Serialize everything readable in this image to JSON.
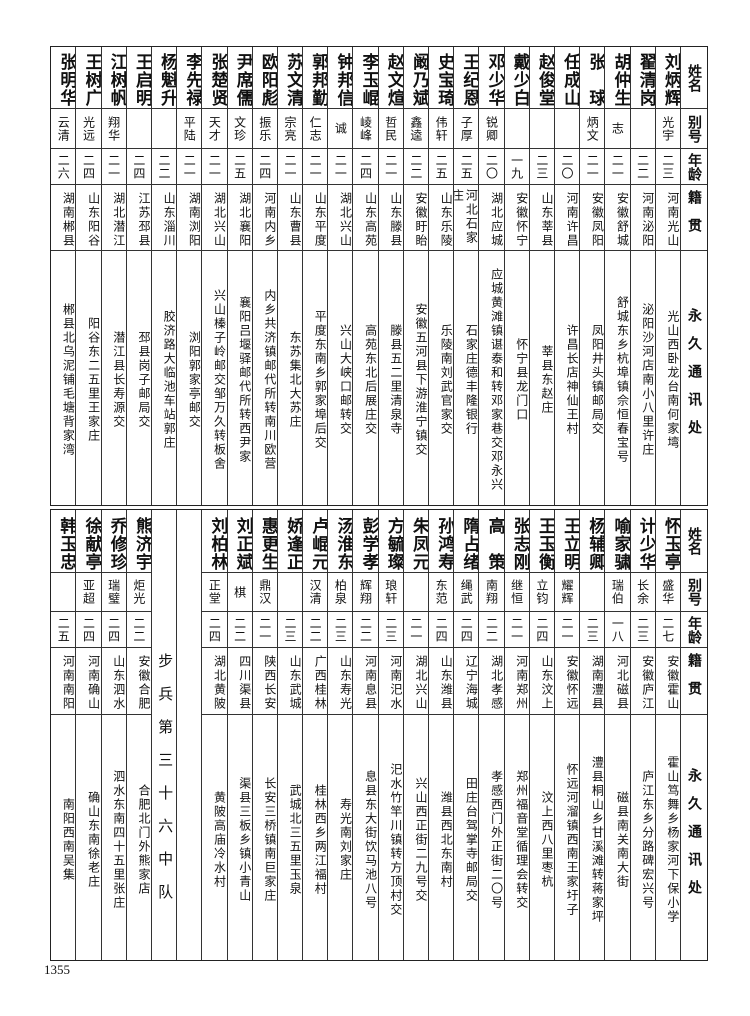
{
  "headers": {
    "name": "姓名",
    "alias": "别号",
    "age": "年龄",
    "origin": "籍贯",
    "address": "永久通讯处"
  },
  "top_rows": [
    {
      "name": "刘炳辉",
      "alias": "光宇",
      "age": "二三",
      "origin": "河南光山",
      "address": "光山西卧龙台南何家塆"
    },
    {
      "name": "翟清岗",
      "alias": "",
      "age": "二二",
      "origin": "河南泌阳",
      "address": "泌阳沙河店南小八里许庄"
    },
    {
      "name": "胡仲生",
      "alias": "志",
      "age": "二一",
      "origin": "安徽舒城",
      "address": "舒城东乡杭埠镇佘恒春宝号"
    },
    {
      "name": "张　球",
      "alias": "炳文",
      "age": "二一",
      "origin": "安徽凤阳",
      "address": "凤阳井头镇邮局交"
    },
    {
      "name": "任成山",
      "alias": "",
      "age": "二〇",
      "origin": "河南许昌",
      "address": "许昌长店神仙王村"
    },
    {
      "name": "赵俊堂",
      "alias": "",
      "age": "二三",
      "origin": "山东莘县",
      "address": "莘县东赵庄"
    },
    {
      "name": "戴少白",
      "alias": "",
      "age": "一九",
      "origin": "安徽怀宁",
      "address": "怀宁县龙门口"
    },
    {
      "name": "邓少华",
      "alias": "锐卿",
      "age": "二〇",
      "origin": "湖北应城",
      "address": "应城黄滩镇谌泰和转邓家巷交邓永兴"
    },
    {
      "name": "王纪恩",
      "alias": "子厚",
      "age": "二五",
      "origin": "河北石家庄",
      "address": "石家庄德丰隆银行"
    },
    {
      "name": "史宝琦",
      "alias": "伟轩",
      "age": "二五",
      "origin": "山东乐陵",
      "address": "乐陵南刘武官家交"
    },
    {
      "name": "阚乃斌",
      "alias": "鑫逵",
      "age": "二二",
      "origin": "安徽盱眙",
      "address": "安徽五河县下游淮宁镇交"
    },
    {
      "name": "赵文煊",
      "alias": "哲民",
      "age": "二一",
      "origin": "山东滕县",
      "address": "滕县五二里清泉寺"
    },
    {
      "name": "李玉崐",
      "alias": "崚峰",
      "age": "二四",
      "origin": "山东高苑",
      "address": "高苑东北后展庄交"
    },
    {
      "name": "钟邦信",
      "alias": "诚",
      "age": "二一",
      "origin": "湖北兴山",
      "address": "兴山大峡口邮转交"
    },
    {
      "name": "郭邦勤",
      "alias": "仁志",
      "age": "二一",
      "origin": "山东平度",
      "address": "平度东南乡郭家埠后交"
    },
    {
      "name": "苏文清",
      "alias": "宗亮",
      "age": "二一",
      "origin": "山东曹县",
      "address": "东苏集北大苏庄"
    },
    {
      "name": "欧阳彪",
      "alias": "振乐",
      "age": "二四",
      "origin": "河南内乡",
      "address": "内乡共济镇邮代所转南川欧营"
    },
    {
      "name": "尹席儒",
      "alias": "文珍",
      "age": "二五",
      "origin": "湖北襄阳",
      "address": "襄阳吕堰驿邮代所转西尹家"
    },
    {
      "name": "张楚贤",
      "alias": "天才",
      "age": "二一",
      "origin": "湖北兴山",
      "address": "兴山榛子岭邮交邹万久转板舍"
    },
    {
      "name": "李先禄",
      "alias": "平陆",
      "age": "二一",
      "origin": "湖南浏阳",
      "address": "浏阳郭家亭邮交"
    },
    {
      "name": "杨魁升",
      "alias": "",
      "age": "二二",
      "origin": "山东淄川",
      "address": "胶济路大临池车站郭庄"
    },
    {
      "name": "王启明",
      "alias": "",
      "age": "二四",
      "origin": "江苏邳县",
      "address": "邳县岗子邮局交"
    },
    {
      "name": "江树帆",
      "alias": "翔华",
      "age": "二一",
      "origin": "湖北潜江",
      "address": "潜江县长寿源交"
    },
    {
      "name": "王树广",
      "alias": "光远",
      "age": "二四",
      "origin": "山东阳谷",
      "address": "阳谷东二五里王家庄"
    },
    {
      "name": "张明华",
      "alias": "云清",
      "age": "二六",
      "origin": "湖南郴县",
      "address": "郴县北乌泥铺毛塘背家湾"
    }
  ],
  "bottom_rows": [
    {
      "name": "怀玉亭",
      "alias": "盛华",
      "age": "二七",
      "origin": "安徽霍山",
      "address": "霍山笃舞乡杨家河下保小学"
    },
    {
      "name": "计少华",
      "alias": "长余",
      "age": "二三",
      "origin": "安徽庐江",
      "address": "庐江东乡分路碑宏兴号"
    },
    {
      "name": "喻家骕",
      "alias": "瑞伯",
      "age": "一八",
      "origin": "河北磁县",
      "address": "磁县南关南大街"
    },
    {
      "name": "杨辅卿",
      "alias": "",
      "age": "二三",
      "origin": "湖南澧县",
      "address": "澧县桐山乡甘溪滩转蒋家坪"
    },
    {
      "name": "王立明",
      "alias": "耀辉",
      "age": "二一",
      "origin": "安徽怀远",
      "address": "怀远河溜镇西南王家圩子"
    },
    {
      "name": "王玉衡",
      "alias": "立钧",
      "age": "二四",
      "origin": "山东汶上",
      "address": "汶上西八里枣杭"
    },
    {
      "name": "张志刚",
      "alias": "继恒",
      "age": "二一",
      "origin": "河南郑州",
      "address": "郑州福音堂循理会转交"
    },
    {
      "name": "高　策",
      "alias": "南翔",
      "age": "二二",
      "origin": "湖北孝感",
      "address": "孝感西门外正街二〇号"
    },
    {
      "name": "隋占绪",
      "alias": "绳武",
      "age": "二四",
      "origin": "辽宁海城",
      "address": "田庄台驾掌寺邮局交"
    },
    {
      "name": "孙鸿寿",
      "alias": "东范",
      "age": "二四",
      "origin": "山东潍县",
      "address": "潍县西北东南村"
    },
    {
      "name": "朱凤元",
      "alias": "",
      "age": "二一",
      "origin": "湖北兴山",
      "address": "兴山西正街二九号交"
    },
    {
      "name": "方毓璨",
      "alias": "琅轩",
      "age": "二三",
      "origin": "河南汜水",
      "address": "汜水竹竿川镇转方顶村交"
    },
    {
      "name": "彭学孝",
      "alias": "辉翔",
      "age": "二二",
      "origin": "河南息县",
      "address": "息县东大街饮马池八号"
    },
    {
      "name": "汤淮东",
      "alias": "柏泉",
      "age": "二三",
      "origin": "山东寿光",
      "address": "寿光南刘家庄"
    },
    {
      "name": "卢崐元",
      "alias": "汉清",
      "age": "二二",
      "origin": "广西桂林",
      "address": "桂林西乡两江福村"
    },
    {
      "name": "娇逢正",
      "alias": "",
      "age": "二三",
      "origin": "山东武城",
      "address": "武城北三五里玉泉"
    },
    {
      "name": "惠更生",
      "alias": "鼎汉",
      "age": "二一",
      "origin": "陕西长安",
      "address": "长安三桥镇南巨家庄"
    },
    {
      "name": "刘正斌",
      "alias": "棋",
      "age": "二二",
      "origin": "四川渠县",
      "address": "渠县三板乡镇小青山"
    },
    {
      "name": "刘柏林",
      "alias": "正堂",
      "age": "二四",
      "origin": "湖北黄陂",
      "address": "黄陂高庙冷水村"
    },
    {
      "blank": true
    },
    {
      "unit": "步兵第三十六中队"
    },
    {
      "name": "熊济宇",
      "alias": "炬光",
      "age": "二二",
      "origin": "安徽合肥",
      "address": "合肥北门外熊家店"
    },
    {
      "name": "乔修珍",
      "alias": "瑞璧",
      "age": "二四",
      "origin": "山东泗水",
      "address": "泗水东南四十五里张庄"
    },
    {
      "name": "徐献亭",
      "alias": "亚超",
      "age": "二四",
      "origin": "河南确山",
      "address": "确山东南徐老庄"
    },
    {
      "name": "韩玉忠",
      "alias": "",
      "age": "二五",
      "origin": "河南南阳",
      "address": "南阳西南吴集"
    }
  ],
  "page_number": "1355"
}
